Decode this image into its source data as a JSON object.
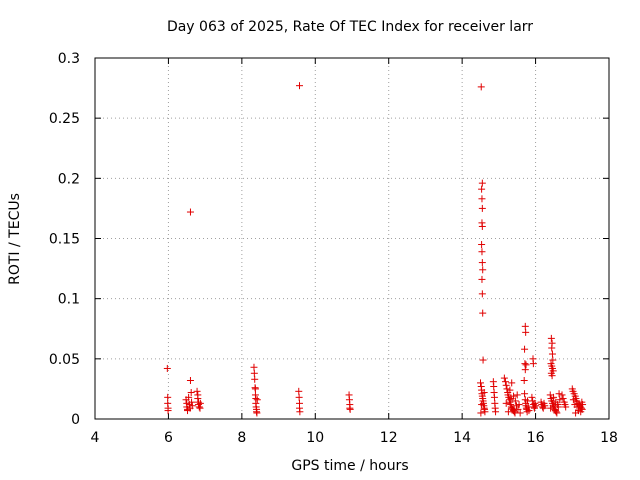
{
  "chart_data": {
    "type": "scatter",
    "title": "Day 063 of 2025, Rate Of TEC Index for receiver larr",
    "xlabel": "GPS time / hours",
    "ylabel": "ROTI / TECUs",
    "xlim": [
      4,
      18
    ],
    "ylim": [
      0,
      0.3
    ],
    "grid": true,
    "marker": "+",
    "marker_color": "#e00000",
    "x_ticks": [
      "4",
      "6",
      "8",
      "10",
      "12",
      "14",
      "16",
      "18"
    ],
    "y_ticks": [
      "0",
      "0.05",
      "0.1",
      "0.15",
      "0.2",
      "0.25",
      "0.3"
    ],
    "series": [
      {
        "name": "ROTI",
        "points": [
          [
            5.97,
            0.042
          ],
          [
            5.98,
            0.018
          ],
          [
            5.98,
            0.013
          ],
          [
            5.99,
            0.009
          ],
          [
            5.99,
            0.007
          ],
          [
            6.48,
            0.016
          ],
          [
            6.5,
            0.013
          ],
          [
            6.5,
            0.01
          ],
          [
            6.52,
            0.008
          ],
          [
            6.52,
            0.007
          ],
          [
            6.55,
            0.018
          ],
          [
            6.57,
            0.012
          ],
          [
            6.59,
            0.009
          ],
          [
            6.6,
            0.032
          ],
          [
            6.6,
            0.172
          ],
          [
            6.62,
            0.022
          ],
          [
            6.63,
            0.014
          ],
          [
            6.65,
            0.011
          ],
          [
            6.78,
            0.023
          ],
          [
            6.8,
            0.02
          ],
          [
            6.8,
            0.017
          ],
          [
            6.82,
            0.014
          ],
          [
            6.82,
            0.012
          ],
          [
            6.84,
            0.01
          ],
          [
            6.86,
            0.009
          ],
          [
            6.87,
            0.013
          ],
          [
            8.33,
            0.043
          ],
          [
            8.34,
            0.038
          ],
          [
            8.35,
            0.033
          ],
          [
            8.36,
            0.026
          ],
          [
            8.37,
            0.025
          ],
          [
            8.37,
            0.02
          ],
          [
            8.38,
            0.017
          ],
          [
            8.38,
            0.013
          ],
          [
            8.39,
            0.01
          ],
          [
            8.4,
            0.008
          ],
          [
            8.4,
            0.006
          ],
          [
            8.41,
            0.005
          ],
          [
            8.42,
            0.016
          ],
          [
            9.55,
            0.023
          ],
          [
            9.56,
            0.018
          ],
          [
            9.57,
            0.013
          ],
          [
            9.57,
            0.009
          ],
          [
            9.58,
            0.006
          ],
          [
            9.57,
            0.277
          ],
          [
            10.92,
            0.02
          ],
          [
            10.93,
            0.016
          ],
          [
            10.94,
            0.012
          ],
          [
            10.94,
            0.009
          ],
          [
            10.95,
            0.008
          ],
          [
            14.52,
            0.276
          ],
          [
            14.55,
            0.196
          ],
          [
            14.53,
            0.191
          ],
          [
            14.54,
            0.183
          ],
          [
            14.55,
            0.175
          ],
          [
            14.54,
            0.163
          ],
          [
            14.55,
            0.16
          ],
          [
            14.53,
            0.145
          ],
          [
            14.54,
            0.139
          ],
          [
            14.55,
            0.13
          ],
          [
            14.56,
            0.124
          ],
          [
            14.54,
            0.116
          ],
          [
            14.55,
            0.104
          ],
          [
            14.56,
            0.088
          ],
          [
            14.57,
            0.049
          ],
          [
            14.5,
            0.03
          ],
          [
            14.52,
            0.027
          ],
          [
            14.53,
            0.024
          ],
          [
            14.54,
            0.021
          ],
          [
            14.55,
            0.019
          ],
          [
            14.56,
            0.017
          ],
          [
            14.57,
            0.015
          ],
          [
            14.58,
            0.013
          ],
          [
            14.59,
            0.011
          ],
          [
            14.6,
            0.009
          ],
          [
            14.61,
            0.008
          ],
          [
            14.62,
            0.006
          ],
          [
            14.51,
            0.005
          ],
          [
            14.53,
            0.012
          ],
          [
            14.6,
            0.022
          ],
          [
            14.85,
            0.031
          ],
          [
            14.86,
            0.027
          ],
          [
            14.87,
            0.022
          ],
          [
            14.88,
            0.018
          ],
          [
            14.89,
            0.013
          ],
          [
            14.9,
            0.009
          ],
          [
            14.91,
            0.006
          ],
          [
            15.15,
            0.034
          ],
          [
            15.18,
            0.031
          ],
          [
            15.2,
            0.028
          ],
          [
            15.22,
            0.025
          ],
          [
            15.24,
            0.022
          ],
          [
            15.25,
            0.02
          ],
          [
            15.27,
            0.018
          ],
          [
            15.29,
            0.016
          ],
          [
            15.3,
            0.014
          ],
          [
            15.32,
            0.012
          ],
          [
            15.34,
            0.01
          ],
          [
            15.36,
            0.009
          ],
          [
            15.38,
            0.008
          ],
          [
            15.4,
            0.007
          ],
          [
            15.42,
            0.006
          ],
          [
            15.44,
            0.005
          ],
          [
            15.2,
            0.013
          ],
          [
            15.3,
            0.024
          ],
          [
            15.35,
            0.03
          ],
          [
            15.4,
            0.019
          ],
          [
            15.45,
            0.015
          ],
          [
            15.48,
            0.011
          ],
          [
            15.5,
            0.02
          ],
          [
            15.52,
            0.008
          ],
          [
            15.55,
            0.012
          ],
          [
            15.58,
            0.005
          ],
          [
            15.26,
            0.006
          ],
          [
            15.33,
            0.017
          ],
          [
            15.72,
            0.077
          ],
          [
            15.73,
            0.072
          ],
          [
            15.7,
            0.058
          ],
          [
            15.71,
            0.046
          ],
          [
            15.72,
            0.041
          ],
          [
            15.69,
            0.032
          ],
          [
            15.74,
            0.045
          ],
          [
            15.7,
            0.021
          ],
          [
            15.72,
            0.016
          ],
          [
            15.73,
            0.013
          ],
          [
            15.74,
            0.011
          ],
          [
            15.75,
            0.009
          ],
          [
            15.76,
            0.008
          ],
          [
            15.77,
            0.006
          ],
          [
            15.78,
            0.015
          ],
          [
            15.8,
            0.01
          ],
          [
            15.82,
            0.007
          ],
          [
            15.93,
            0.05
          ],
          [
            15.94,
            0.046
          ],
          [
            15.9,
            0.018
          ],
          [
            15.92,
            0.015
          ],
          [
            15.94,
            0.012
          ],
          [
            15.96,
            0.01
          ],
          [
            15.97,
            0.009
          ],
          [
            15.98,
            0.013
          ],
          [
            16.0,
            0.011
          ],
          [
            16.15,
            0.014
          ],
          [
            16.17,
            0.012
          ],
          [
            16.19,
            0.01
          ],
          [
            16.21,
            0.009
          ],
          [
            16.23,
            0.013
          ],
          [
            16.25,
            0.011
          ],
          [
            16.43,
            0.067
          ],
          [
            16.45,
            0.063
          ],
          [
            16.44,
            0.059
          ],
          [
            16.46,
            0.054
          ],
          [
            16.47,
            0.049
          ],
          [
            16.42,
            0.046
          ],
          [
            16.44,
            0.044
          ],
          [
            16.46,
            0.042
          ],
          [
            16.48,
            0.04
          ],
          [
            16.43,
            0.038
          ],
          [
            16.45,
            0.036
          ],
          [
            16.4,
            0.02
          ],
          [
            16.42,
            0.017
          ],
          [
            16.44,
            0.015
          ],
          [
            16.46,
            0.013
          ],
          [
            16.48,
            0.011
          ],
          [
            16.5,
            0.01
          ],
          [
            16.52,
            0.008
          ],
          [
            16.54,
            0.007
          ],
          [
            16.56,
            0.006
          ],
          [
            16.58,
            0.005
          ],
          [
            16.41,
            0.009
          ],
          [
            16.49,
            0.018
          ],
          [
            16.55,
            0.014
          ],
          [
            16.6,
            0.012
          ],
          [
            16.62,
            0.01
          ],
          [
            16.64,
            0.021
          ],
          [
            16.66,
            0.016
          ],
          [
            16.72,
            0.02
          ],
          [
            16.75,
            0.017
          ],
          [
            16.78,
            0.014
          ],
          [
            16.8,
            0.012
          ],
          [
            16.82,
            0.01
          ],
          [
            17.0,
            0.025
          ],
          [
            17.02,
            0.023
          ],
          [
            17.05,
            0.021
          ],
          [
            17.08,
            0.019
          ],
          [
            17.1,
            0.017
          ],
          [
            17.12,
            0.015
          ],
          [
            17.15,
            0.013
          ],
          [
            17.18,
            0.012
          ],
          [
            17.2,
            0.011
          ],
          [
            17.22,
            0.01
          ],
          [
            17.25,
            0.009
          ],
          [
            17.27,
            0.008
          ],
          [
            17.03,
            0.016
          ],
          [
            17.07,
            0.012
          ],
          [
            17.13,
            0.01
          ],
          [
            17.17,
            0.007
          ],
          [
            17.23,
            0.006
          ],
          [
            17.26,
            0.014
          ],
          [
            17.28,
            0.012
          ],
          [
            17.09,
            0.005
          ]
        ]
      }
    ]
  }
}
